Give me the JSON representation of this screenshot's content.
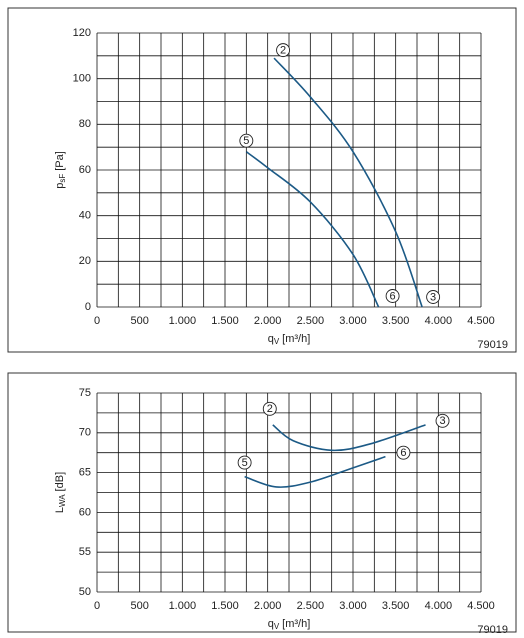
{
  "chart_data": [
    {
      "type": "line",
      "y_label": {
        "main": "p",
        "sub": "sF",
        "unit": "[Pa]"
      },
      "x_label": {
        "main": "q",
        "sub": "V",
        "unit": "[m³/h]"
      },
      "figure_code": "79019",
      "xlim": [
        0,
        4500
      ],
      "xticks": [
        0,
        500,
        {
          "value": 1000,
          "label": "1.000"
        },
        {
          "value": 1500,
          "label": "1.500"
        },
        {
          "value": 2000,
          "label": "2.000"
        },
        {
          "value": 2500,
          "label": "2.500"
        },
        {
          "value": 3000,
          "label": "3.000"
        },
        {
          "value": 3500,
          "label": "3.500"
        },
        {
          "value": 4000,
          "label": "4.000"
        },
        {
          "value": 4500,
          "label": "4.500"
        }
      ],
      "xgrid": [
        0,
        250,
        500,
        750,
        1000,
        1250,
        1500,
        1750,
        2000,
        2250,
        2500,
        2750,
        3000,
        3250,
        3500,
        3750,
        4000,
        4250,
        4500
      ],
      "ylim": [
        0,
        120
      ],
      "yticks": [
        0,
        20,
        40,
        60,
        80,
        100,
        120
      ],
      "ygrid": [
        0,
        10,
        20,
        30,
        40,
        50,
        60,
        70,
        80,
        90,
        100,
        110,
        120
      ],
      "grid": true,
      "series": [
        {
          "start_label": "2",
          "end_label": "3",
          "color": "#1c5a86",
          "x": [
            2075,
            2500,
            3000,
            3500,
            3810
          ],
          "values": [
            109,
            92,
            68,
            33,
            0
          ]
        },
        {
          "start_label": "5",
          "end_label": "6",
          "color": "#1c5a86",
          "x": [
            1750,
            2000,
            2500,
            3000,
            3300
          ],
          "values": [
            68,
            61,
            46,
            23,
            0
          ]
        }
      ]
    },
    {
      "type": "line",
      "y_label": {
        "main": "L",
        "sub": "WA",
        "unit": "[dB]"
      },
      "x_label": {
        "main": "q",
        "sub": "V",
        "unit": "[m³/h]"
      },
      "figure_code": "79019",
      "xlim": [
        0,
        4500
      ],
      "xticks": [
        0,
        500,
        {
          "value": 1000,
          "label": "1.000"
        },
        {
          "value": 1500,
          "label": "1.500"
        },
        {
          "value": 2000,
          "label": "2.000"
        },
        {
          "value": 2500,
          "label": "2.500"
        },
        {
          "value": 3000,
          "label": "3.000"
        },
        {
          "value": 3500,
          "label": "3.500"
        },
        {
          "value": 4000,
          "label": "4.000"
        },
        {
          "value": 4500,
          "label": "4.500"
        }
      ],
      "xgrid": [
        0,
        250,
        500,
        750,
        1000,
        1250,
        1500,
        1750,
        2000,
        2250,
        2500,
        2750,
        3000,
        3250,
        3500,
        3750,
        4000,
        4250,
        4500
      ],
      "ylim": [
        50,
        75
      ],
      "yticks": [
        50,
        55,
        60,
        65,
        70,
        75
      ],
      "ygrid": [
        50,
        52.5,
        55,
        57.5,
        60,
        62.5,
        65,
        67.5,
        70,
        72.5,
        75
      ],
      "grid": true,
      "series": [
        {
          "start_label": "2",
          "end_label": "3",
          "color": "#1c5a86",
          "x": [
            2060,
            2300,
            2750,
            3200,
            3850
          ],
          "values": [
            71,
            69,
            67.8,
            68.6,
            71
          ]
        },
        {
          "start_label": "5",
          "end_label": "6",
          "color": "#1c5a86",
          "x": [
            1730,
            2100,
            2500,
            3000,
            3380
          ],
          "values": [
            64.5,
            63.2,
            63.8,
            65.6,
            67
          ]
        }
      ]
    }
  ]
}
